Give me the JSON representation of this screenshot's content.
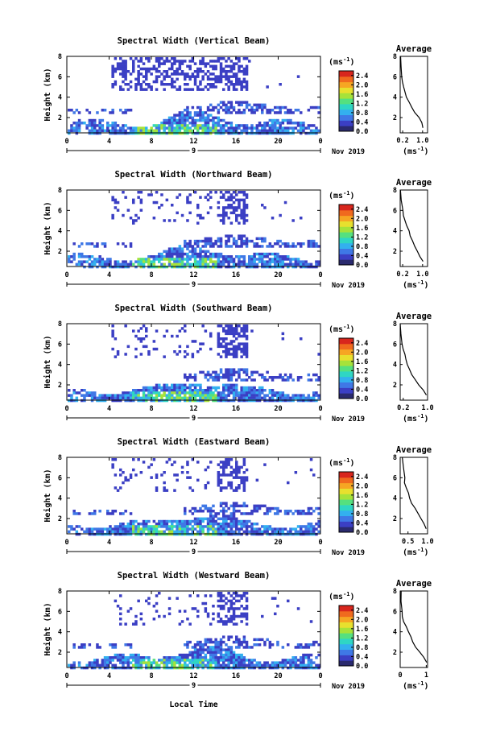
{
  "figure": {
    "xlabel": "Local Time",
    "date_label": "Nov 2019",
    "day_label": "9",
    "unit_label": "(ms",
    "unit_exp": "-1",
    "unit_close": ")",
    "avg_title": "Average",
    "ylabel": "Height (km)"
  },
  "chart_data": [
    {
      "type": "heatmap",
      "title": "Spectral Width (Vertical Beam)",
      "xlabel": "",
      "ylabel": "Height (km)",
      "x_ticks": [
        "0",
        "4",
        "8",
        "12",
        "16",
        "20",
        "0"
      ],
      "y_ticks": [
        "2",
        "4",
        "6",
        "8"
      ],
      "xlim": [
        0,
        24
      ],
      "ylim": [
        0.5,
        8
      ],
      "colorbar_ticks": [
        "0.0",
        "0.4",
        "0.8",
        "1.2",
        "1.6",
        "2.0",
        "2.4"
      ],
      "colorbar_range": [
        0,
        2.6
      ],
      "average_profile": {
        "title": "Average",
        "x_ticks": [
          "0.2",
          "1.0"
        ],
        "xlim": [
          0.1,
          1.2
        ],
        "x": [
          1.0,
          0.95,
          0.85,
          0.7,
          0.55,
          0.45,
          0.35,
          0.3,
          0.25,
          0.2,
          0.15,
          0.12,
          0.1
        ],
        "y": [
          1.0,
          1.5,
          2.0,
          2.5,
          3.0,
          3.5,
          4.0,
          4.5,
          5.0,
          5.5,
          6.0,
          7.0,
          8.0
        ]
      }
    },
    {
      "type": "heatmap",
      "title": "Spectral Width (Northward Beam)",
      "xlabel": "",
      "ylabel": "Height (km)",
      "x_ticks": [
        "0",
        "4",
        "8",
        "12",
        "16",
        "20",
        "0"
      ],
      "y_ticks": [
        "2",
        "4",
        "6",
        "8"
      ],
      "xlim": [
        0,
        24
      ],
      "ylim": [
        0.5,
        8
      ],
      "colorbar_ticks": [
        "0.0",
        "0.4",
        "0.8",
        "1.2",
        "1.6",
        "2.0",
        "2.4"
      ],
      "colorbar_range": [
        0,
        2.6
      ],
      "average_profile": {
        "title": "Average",
        "x_ticks": [
          "0.2",
          "1.0"
        ],
        "xlim": [
          0.1,
          1.2
        ],
        "x": [
          1.0,
          0.9,
          0.8,
          0.7,
          0.6,
          0.5,
          0.45,
          0.35,
          0.3,
          0.25,
          0.2,
          0.15,
          0.1
        ],
        "y": [
          1.0,
          1.5,
          2.0,
          2.5,
          3.0,
          3.5,
          4.0,
          4.5,
          5.0,
          5.5,
          6.0,
          7.0,
          8.0
        ]
      }
    },
    {
      "type": "heatmap",
      "title": "Spectral Width (Southward Beam)",
      "xlabel": "",
      "ylabel": "Height (km)",
      "x_ticks": [
        "0",
        "4",
        "8",
        "12",
        "16",
        "20",
        "0"
      ],
      "y_ticks": [
        "2",
        "4",
        "6",
        "8"
      ],
      "xlim": [
        0,
        24
      ],
      "ylim": [
        0.5,
        8
      ],
      "colorbar_ticks": [
        "0.0",
        "0.4",
        "0.8",
        "1.2",
        "1.6",
        "2.0",
        "2.4"
      ],
      "colorbar_range": [
        0,
        2.6
      ],
      "average_profile": {
        "title": "Average",
        "x_ticks": [
          "0.2",
          "1.0"
        ],
        "xlim": [
          0.1,
          1.0
        ],
        "x": [
          0.95,
          0.85,
          0.7,
          0.6,
          0.5,
          0.4,
          0.35,
          0.3,
          0.25,
          0.2,
          0.15,
          0.12,
          0.1
        ],
        "y": [
          1.0,
          1.5,
          2.0,
          2.5,
          3.0,
          3.5,
          4.0,
          4.5,
          5.0,
          5.5,
          6.0,
          7.0,
          8.0
        ]
      }
    },
    {
      "type": "heatmap",
      "title": "Spectral Width (Eastward Beam)",
      "xlabel": "",
      "ylabel": "Height (km)",
      "x_ticks": [
        "0",
        "4",
        "8",
        "12",
        "16",
        "20",
        "0"
      ],
      "y_ticks": [
        "2",
        "4",
        "6",
        "8"
      ],
      "xlim": [
        0,
        24
      ],
      "ylim": [
        0.5,
        8
      ],
      "colorbar_ticks": [
        "0.0",
        "0.4",
        "0.8",
        "1.2",
        "1.6",
        "2.0",
        "2.4"
      ],
      "colorbar_range": [
        0,
        2.6
      ],
      "average_profile": {
        "title": "Average",
        "x_ticks": [
          "0.5",
          "1.0"
        ],
        "xlim": [
          0.3,
          1.0
        ],
        "x": [
          0.98,
          0.9,
          0.82,
          0.75,
          0.68,
          0.6,
          0.55,
          0.5,
          0.46,
          0.42,
          0.4,
          0.38,
          0.36
        ],
        "y": [
          1.0,
          1.5,
          2.0,
          2.5,
          3.0,
          3.5,
          4.0,
          4.5,
          5.0,
          5.5,
          6.0,
          7.0,
          8.0
        ]
      }
    },
    {
      "type": "heatmap",
      "title": "Spectral Width (Westward Beam)",
      "xlabel": "Local Time",
      "ylabel": "Height (km)",
      "x_ticks": [
        "0",
        "4",
        "8",
        "12",
        "16",
        "20",
        "0"
      ],
      "y_ticks": [
        "2",
        "4",
        "6",
        "8"
      ],
      "xlim": [
        0,
        24
      ],
      "ylim": [
        0.5,
        8
      ],
      "colorbar_ticks": [
        "0.0",
        "0.4",
        "0.8",
        "1.2",
        "1.6",
        "2.0",
        "2.4"
      ],
      "colorbar_range": [
        0,
        2.6
      ],
      "average_profile": {
        "title": "Average",
        "x_ticks": [
          "0",
          "1"
        ],
        "xlim": [
          0,
          1.05
        ],
        "x": [
          1.0,
          0.9,
          0.75,
          0.6,
          0.5,
          0.4,
          0.3,
          0.22,
          0.15,
          0.1,
          0.06,
          0.04,
          0.02
        ],
        "y": [
          1.0,
          1.5,
          2.0,
          2.5,
          3.0,
          3.5,
          4.0,
          4.5,
          5.0,
          5.5,
          6.0,
          7.0,
          8.0
        ]
      }
    }
  ],
  "colors": {
    "colormap": [
      "#2a2a6e",
      "#3b3fc4",
      "#3f78e6",
      "#33b0ef",
      "#2fd6c4",
      "#55e07f",
      "#a6e23a",
      "#e8e02e",
      "#f6a623",
      "#f06a1e",
      "#d8261d"
    ]
  }
}
